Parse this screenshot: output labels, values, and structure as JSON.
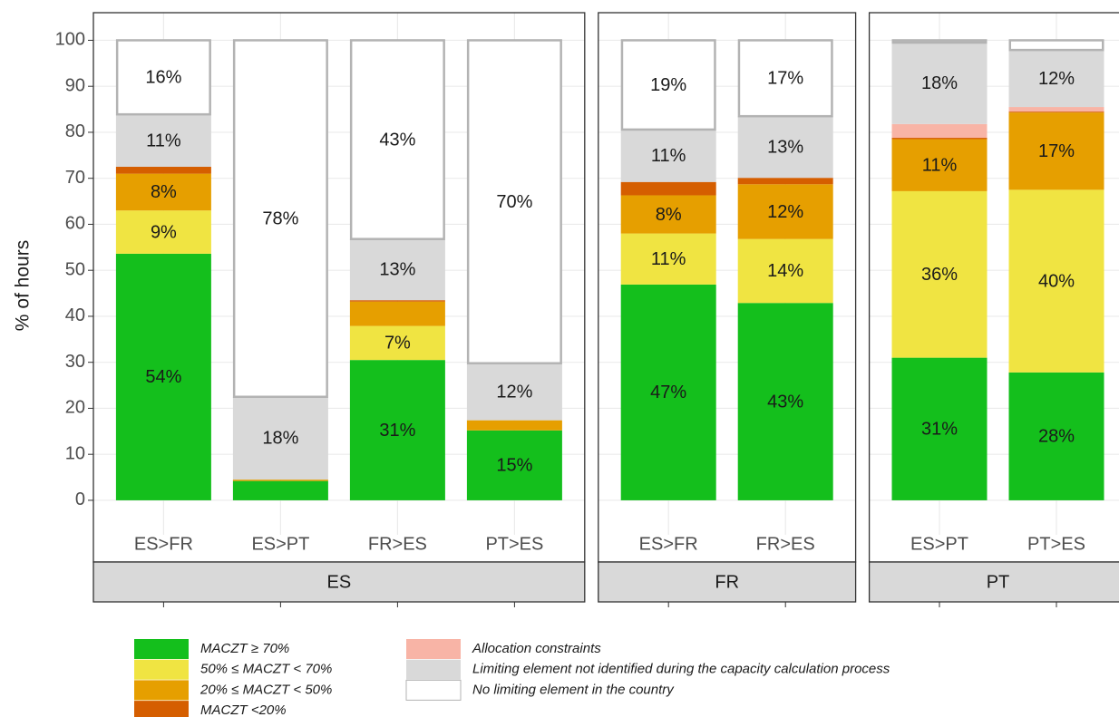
{
  "chart_data": {
    "type": "bar",
    "stacked": true,
    "ylabel": "% of hours",
    "ylim": [
      -7.5,
      106
    ],
    "yticks": [
      0,
      10,
      20,
      30,
      40,
      50,
      60,
      70,
      80,
      90,
      100
    ],
    "grid": true,
    "facets": [
      {
        "label": "ES",
        "categories": [
          "ES>FR",
          "ES>PT",
          "FR>ES",
          "PT>ES"
        ]
      },
      {
        "label": "FR",
        "categories": [
          "ES>FR",
          "FR>ES"
        ]
      },
      {
        "label": "PT",
        "categories": [
          "ES>PT",
          "PT>ES"
        ]
      }
    ],
    "series": [
      {
        "name": "MACZT ≥ 70%",
        "color": "#14bf1c",
        "values": [
          53.6,
          4.2,
          30.5,
          15.2,
          46.9,
          42.9,
          31,
          27.8
        ],
        "value_labels": [
          "54%",
          null,
          "31%",
          "15%",
          "47%",
          "43%",
          "31%",
          "28%"
        ]
      },
      {
        "name": "50% ≤ MACZT < 70%",
        "color": "#f0e442",
        "values": [
          9.4,
          0,
          7.4,
          0,
          11.1,
          13.9,
          36.2,
          39.7
        ],
        "value_labels": [
          "9%",
          null,
          "7%",
          null,
          "11%",
          "14%",
          "36%",
          "40%"
        ]
      },
      {
        "name": "20% ≤ MACZT < 50%",
        "color": "#e69f00",
        "values": [
          8.0,
          0.3,
          5.3,
          2.2,
          8.3,
          11.9,
          11.3,
          16.8
        ],
        "value_labels": [
          "8%",
          null,
          null,
          null,
          "8%",
          "12%",
          "11%",
          "17%"
        ]
      },
      {
        "name": "MACZT <20%",
        "color": "#d55e00",
        "values": [
          1.5,
          0,
          0.3,
          0,
          2.9,
          1.4,
          0.3,
          0.2
        ],
        "value_labels": [
          null,
          null,
          null,
          null,
          null,
          null,
          null,
          null
        ]
      },
      {
        "name": "Allocation constraints",
        "color": "#f8b4a6",
        "values": [
          0,
          0,
          0,
          0,
          0,
          0,
          3.0,
          1.0
        ],
        "value_labels": [
          null,
          null,
          null,
          null,
          null,
          null,
          null,
          null
        ]
      },
      {
        "name": "Limiting element not identified during the capacity calculation process",
        "color": "#d9d9d9",
        "values": [
          11.4,
          18,
          13.3,
          12.4,
          11.4,
          13.4,
          17.7,
          12.4
        ],
        "value_labels": [
          "11%",
          "18%",
          "13%",
          "12%",
          "11%",
          "13%",
          "18%",
          "12%"
        ]
      },
      {
        "name": "No limiting element in the country",
        "color": "#ffffff",
        "outline": "#b3b3b3",
        "values": [
          16.1,
          77.5,
          43.2,
          70.2,
          19.4,
          16.5,
          0.5,
          2.1
        ],
        "value_labels": [
          "16%",
          "78%",
          "43%",
          "70%",
          "19%",
          "17%",
          null,
          null
        ]
      }
    ]
  }
}
